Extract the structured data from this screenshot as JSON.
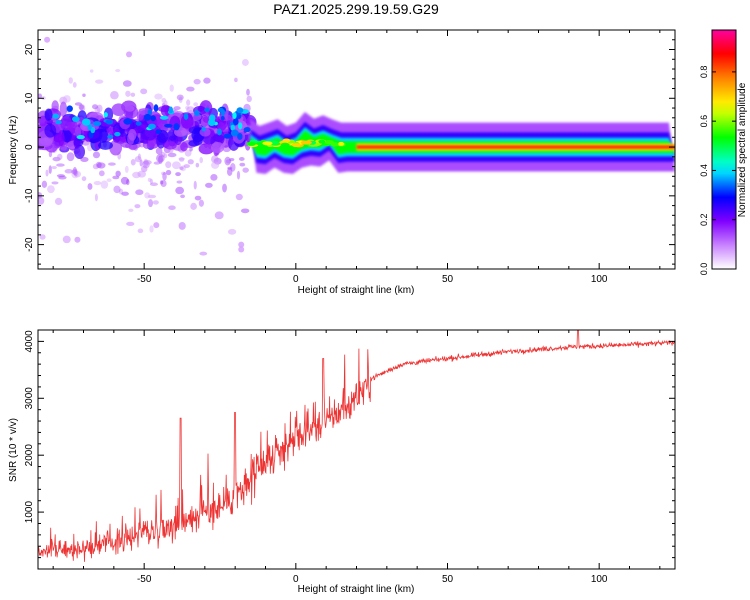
{
  "title": "PAZ1.2025.299.19.59.G29",
  "chart_data": [
    {
      "type": "heatmap",
      "title": "PAZ1.2025.299.19.59.G29",
      "xlabel": "Height of straight line (km)",
      "ylabel": "Frequency (Hz)",
      "xlim": [
        -85,
        125
      ],
      "ylim": [
        -25,
        24
      ],
      "xticks": [
        -50,
        0,
        50,
        100
      ],
      "yticks": [
        -20,
        -10,
        0,
        10,
        20
      ],
      "colorbar": {
        "label": "Normalized spectral amplitude",
        "range": [
          0,
          0.97
        ],
        "ticks": [
          0.0,
          0.2,
          0.4,
          0.6,
          0.8
        ],
        "tick_labels": [
          "0.0",
          "0.2",
          "0.4",
          "0.6",
          "0.8"
        ],
        "colormap": [
          "#ffffff",
          "#8000ff",
          "#0000ff",
          "#00ffff",
          "#00ff00",
          "#ffff00",
          "#ff8000",
          "#ff0000",
          "#ff00a0"
        ]
      },
      "description_points": [
        {
          "x": -80,
          "freq": 4,
          "amp": 0.3
        },
        {
          "x": -60,
          "freq": 3,
          "amp": 0.25
        },
        {
          "x": -40,
          "freq": 4,
          "amp": 0.3
        },
        {
          "x": -25,
          "freq": 4,
          "amp": 0.35
        },
        {
          "x": -10,
          "freq": 0.5,
          "amp": 0.5
        },
        {
          "x": 8,
          "freq": 2,
          "amp": 0.55
        },
        {
          "x": 20,
          "freq": 0,
          "amp": 0.7
        },
        {
          "x": 50,
          "freq": 0,
          "amp": 0.85
        },
        {
          "x": 100,
          "freq": 0,
          "amp": 0.9
        }
      ]
    },
    {
      "type": "line",
      "xlabel": "Height of straight line (km)",
      "ylabel": "SNR (10 * v/v)",
      "xlim": [
        -85,
        125
      ],
      "ylim": [
        0,
        4200
      ],
      "xticks": [
        -50,
        0,
        50,
        100
      ],
      "yticks": [
        1000,
        2000,
        3000,
        4000
      ],
      "line_color": "#ee3333",
      "trend": {
        "x": [
          -85,
          -70,
          -55,
          -40,
          -25,
          -15,
          -10,
          0,
          10,
          18,
          25,
          35,
          50,
          70,
          90,
          110,
          125
        ],
        "y": [
          300,
          350,
          550,
          800,
          1100,
          1500,
          1800,
          2300,
          2600,
          2900,
          3350,
          3600,
          3700,
          3820,
          3900,
          3940,
          3980
        ]
      },
      "spikes": [
        {
          "x": -38,
          "y": 2650
        },
        {
          "x": -20,
          "y": 2750
        },
        {
          "x": 9,
          "y": 3700
        },
        {
          "x": 93,
          "y": 4200
        }
      ]
    }
  ]
}
